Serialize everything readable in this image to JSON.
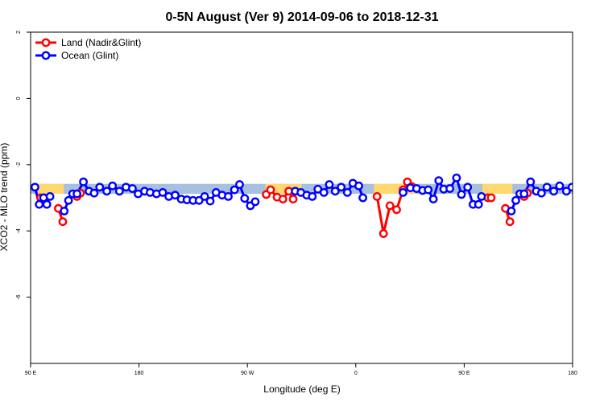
{
  "chart_data": {
    "type": "line",
    "title": "0-5N August (Ver 9)   2014-09-06 to 2018-12-31",
    "xlabel": "Longitude (deg E)",
    "ylabel": "XCO2 - MLO trend (ppm)",
    "xlim": [
      90,
      450
    ],
    "ylim": [
      -8,
      2
    ],
    "x_ticks": [
      {
        "value": 90,
        "label": "90 E"
      },
      {
        "value": 162,
        "label": "180"
      },
      {
        "value": 234,
        "label": "90 W"
      },
      {
        "value": 306,
        "label": "0"
      },
      {
        "value": 378,
        "label": "90 E"
      },
      {
        "value": 450,
        "label": "180"
      }
    ],
    "y_ticks": [
      {
        "value": 2,
        "label": "2"
      },
      {
        "value": 0,
        "label": "0"
      },
      {
        "value": -2,
        "label": "-2"
      },
      {
        "value": -4,
        "label": "-4"
      },
      {
        "value": -6,
        "label": "-6"
      }
    ],
    "legend_position": "top-left",
    "colors": {
      "land": "#ff0000",
      "ocean": "#0000ff",
      "ocean_band": "#a8c0e0",
      "land_band": "#ffd870"
    },
    "bands": [
      {
        "name": "ocean",
        "x0": 90,
        "x1": 450,
        "low": -2.88,
        "high": -2.58
      },
      {
        "name": "land",
        "x0": 95,
        "x1": 112,
        "low": -2.88,
        "high": -2.58
      },
      {
        "name": "land",
        "x0": 246,
        "x1": 270,
        "low": -2.88,
        "high": -2.58
      },
      {
        "name": "land",
        "x0": 318,
        "x1": 346,
        "low": -2.88,
        "high": -2.58
      },
      {
        "name": "land",
        "x0": 390,
        "x1": 410,
        "low": -2.88,
        "high": -2.58
      }
    ],
    "series": [
      {
        "name": "Land (Nadir&Glint)",
        "color": "#ff0000",
        "segments": [
          [
            [
              96.7,
              -3.0
            ],
            [
              98.8,
              -3.0
            ]
          ],
          [
            [
              108.4,
              -3.32
            ],
            [
              111.4,
              -3.72
            ]
          ],
          [
            [
              120.8,
              -2.96
            ],
            [
              123.1,
              -2.86
            ]
          ],
          [
            [
              246.5,
              -2.9
            ],
            [
              249.4,
              -2.76
            ],
            [
              253.7,
              -2.98
            ],
            [
              257.6,
              -3.04
            ],
            [
              261.5,
              -2.8
            ],
            [
              264.4,
              -3.04
            ]
          ],
          [
            [
              320.1,
              -2.96
            ],
            [
              324.4,
              -4.08
            ],
            [
              328.7,
              -3.24
            ],
            [
              333.1,
              -3.36
            ],
            [
              337.4,
              -2.76
            ],
            [
              340.3,
              -2.52
            ],
            [
              343.2,
              -2.66
            ]
          ],
          [
            [
              393.7,
              -3.0
            ],
            [
              395.9,
              -3.0
            ]
          ],
          [
            [
              405.4,
              -3.32
            ],
            [
              408.4,
              -3.72
            ]
          ],
          [
            [
              417.8,
              -2.96
            ],
            [
              420.0,
              -2.86
            ]
          ]
        ]
      },
      {
        "name": "Ocean (Glint)",
        "color": "#0000ff",
        "segments": [
          [
            [
              92.9,
              -2.68
            ],
            [
              95.7,
              -3.2
            ],
            [
              98.6,
              -3.0
            ],
            [
              100.8,
              -3.2
            ],
            [
              102.9,
              -2.96
            ]
          ],
          [
            [
              112.3,
              -3.4
            ],
            [
              115.2,
              -3.08
            ],
            [
              117.9,
              -2.88
            ],
            [
              120.8,
              -2.88
            ],
            [
              125.1,
              -2.52
            ],
            [
              128.8,
              -2.8
            ],
            [
              132.2,
              -2.86
            ],
            [
              135.9,
              -2.68
            ],
            [
              140.6,
              -2.8
            ],
            [
              144.4,
              -2.64
            ],
            [
              149.0,
              -2.8
            ],
            [
              153.4,
              -2.68
            ],
            [
              157.6,
              -2.72
            ],
            [
              161.4,
              -2.88
            ],
            [
              165.7,
              -2.8
            ],
            [
              169.4,
              -2.84
            ],
            [
              173.6,
              -2.88
            ],
            [
              177.8,
              -2.84
            ],
            [
              181.8,
              -2.96
            ],
            [
              186.0,
              -2.92
            ],
            [
              190.1,
              -3.04
            ],
            [
              193.9,
              -3.06
            ],
            [
              197.9,
              -3.08
            ],
            [
              201.9,
              -3.08
            ],
            [
              205.6,
              -2.96
            ],
            [
              209.3,
              -3.1
            ],
            [
              213.2,
              -2.84
            ],
            [
              217.2,
              -2.92
            ],
            [
              221.3,
              -2.96
            ],
            [
              225.4,
              -2.76
            ],
            [
              228.8,
              -2.6
            ],
            [
              232.2,
              -3.02
            ],
            [
              236.0,
              -3.24
            ],
            [
              239.2,
              -3.12
            ]
          ],
          [
            [
              265.8,
              -2.8
            ],
            [
              269.5,
              -2.84
            ],
            [
              273.4,
              -2.92
            ],
            [
              277.1,
              -2.96
            ],
            [
              280.8,
              -2.74
            ],
            [
              284.8,
              -2.84
            ],
            [
              288.4,
              -2.6
            ],
            [
              292.3,
              -2.8
            ],
            [
              296.3,
              -2.68
            ],
            [
              300.4,
              -2.84
            ],
            [
              304.1,
              -2.56
            ],
            [
              308.0,
              -2.64
            ],
            [
              310.7,
              -3.0
            ]
          ],
          [
            [
              337.4,
              -2.84
            ],
            [
              342.3,
              -2.7
            ],
            [
              346.4,
              -2.72
            ],
            [
              350.4,
              -2.78
            ],
            [
              354.1,
              -2.76
            ],
            [
              357.5,
              -3.04
            ],
            [
              361.1,
              -2.48
            ],
            [
              364.4,
              -2.74
            ],
            [
              368.5,
              -2.72
            ],
            [
              372.9,
              -2.4
            ],
            [
              376.2,
              -2.9
            ],
            [
              380.3,
              -2.68
            ],
            [
              383.9,
              -3.2
            ],
            [
              387.5,
              -3.2
            ],
            [
              389.5,
              -2.96
            ]
          ],
          [
            [
              409.3,
              -3.4
            ],
            [
              412.3,
              -3.08
            ],
            [
              414.9,
              -2.88
            ],
            [
              417.8,
              -2.88
            ],
            [
              422.1,
              -2.52
            ],
            [
              425.9,
              -2.8
            ],
            [
              429.3,
              -2.86
            ],
            [
              433.0,
              -2.68
            ],
            [
              437.5,
              -2.8
            ],
            [
              441.4,
              -2.64
            ],
            [
              445.9,
              -2.8
            ],
            [
              449.6,
              -2.68
            ],
            [
              453.4,
              -2.72
            ]
          ]
        ]
      }
    ]
  }
}
